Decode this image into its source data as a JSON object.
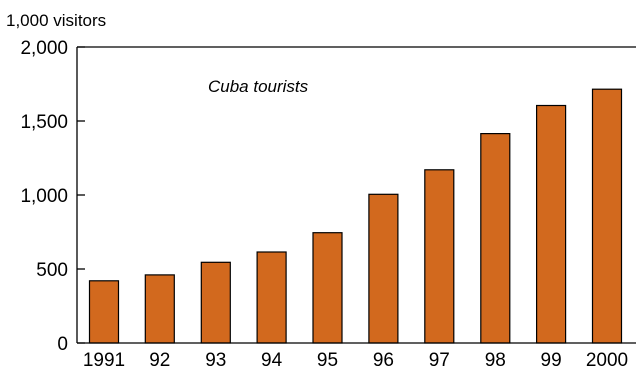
{
  "chart_data": {
    "type": "bar",
    "title": "",
    "unit_label": "1,000 visitors",
    "annotation": "Cuba tourists",
    "categories": [
      "1991",
      "92",
      "93",
      "94",
      "95",
      "96",
      "97",
      "98",
      "99",
      "2000"
    ],
    "values": [
      420,
      460,
      545,
      615,
      745,
      1005,
      1170,
      1415,
      1605,
      1715
    ],
    "ylim": [
      0,
      2000
    ],
    "yticks": [
      0,
      500,
      1000,
      1500,
      2000
    ],
    "ytick_labels": [
      "0",
      "500",
      "1,000",
      "1,500",
      "2,000"
    ],
    "bar_color": "#d2691e",
    "bar_edge_color": "#000000",
    "grid": false,
    "legend": false
  }
}
